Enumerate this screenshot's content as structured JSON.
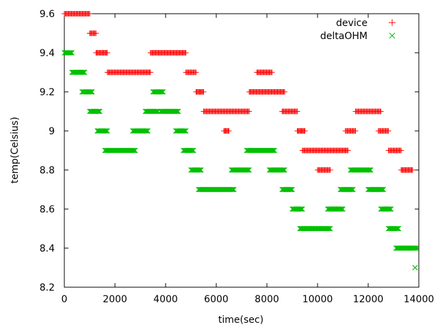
{
  "chart_data": {
    "type": "scatter",
    "title": "",
    "xlabel": "time(sec)",
    "ylabel": "temp(Celsius)",
    "xlim": [
      0,
      14000
    ],
    "ylim": [
      8.2,
      9.6
    ],
    "xticks": [
      0,
      2000,
      4000,
      6000,
      8000,
      10000,
      12000,
      14000
    ],
    "xtick_labels": [
      "0",
      "2000",
      "4000",
      "6000",
      "8000",
      "10000",
      "12000",
      "14000"
    ],
    "yticks": [
      8.2,
      8.4,
      8.6,
      8.8,
      9.0,
      9.2,
      9.4,
      9.6
    ],
    "ytick_labels": [
      "8.2",
      "8.4",
      "8.6",
      "8.8",
      "9",
      "9.2",
      "9.4",
      "9.6"
    ],
    "grid": false,
    "legend_position": "top-right",
    "series": [
      {
        "name": "device",
        "marker": "plus",
        "color": "#ff0000",
        "segments": [
          {
            "x": [
              0,
              1000
            ],
            "y": 9.6
          },
          {
            "x": [
              1000,
              1250
            ],
            "y": 9.5
          },
          {
            "x": [
              1250,
              1700
            ],
            "y": 9.4
          },
          {
            "x": [
              1700,
              3400
            ],
            "y": 9.3
          },
          {
            "x": [
              3400,
              4800
            ],
            "y": 9.4
          },
          {
            "x": [
              4800,
              5200
            ],
            "y": 9.3
          },
          {
            "x": [
              5200,
              5500
            ],
            "y": 9.2
          },
          {
            "x": [
              5500,
              7300
            ],
            "y": 9.1
          },
          {
            "x": [
              6300,
              6500
            ],
            "y": 9.0
          },
          {
            "x": [
              7300,
              8700
            ],
            "y": 9.2
          },
          {
            "x": [
              7600,
              8200
            ],
            "y": 9.3
          },
          {
            "x": [
              8600,
              9200
            ],
            "y": 9.1
          },
          {
            "x": [
              9200,
              9500
            ],
            "y": 9.0
          },
          {
            "x": [
              9400,
              11200
            ],
            "y": 8.9
          },
          {
            "x": [
              10000,
              10500
            ],
            "y": 8.8
          },
          {
            "x": [
              11100,
              11500
            ],
            "y": 9.0
          },
          {
            "x": [
              11500,
              12500
            ],
            "y": 9.1
          },
          {
            "x": [
              12400,
              12800
            ],
            "y": 9.0
          },
          {
            "x": [
              12800,
              13300
            ],
            "y": 8.9
          },
          {
            "x": [
              13300,
              13750
            ],
            "y": 8.8
          }
        ]
      },
      {
        "name": "deltaOHM",
        "marker": "cross",
        "color": "#00c000",
        "segments": [
          {
            "x": [
              0,
              300
            ],
            "y": 9.4
          },
          {
            "x": [
              300,
              800
            ],
            "y": 9.3
          },
          {
            "x": [
              700,
              1100
            ],
            "y": 9.2
          },
          {
            "x": [
              1000,
              1400
            ],
            "y": 9.1
          },
          {
            "x": [
              1300,
              1700
            ],
            "y": 9.0
          },
          {
            "x": [
              1600,
              2800
            ],
            "y": 8.9
          },
          {
            "x": [
              2700,
              3300
            ],
            "y": 9.0
          },
          {
            "x": [
              3200,
              3700
            ],
            "y": 9.1
          },
          {
            "x": [
              3500,
              3900
            ],
            "y": 9.2
          },
          {
            "x": [
              3800,
              4500
            ],
            "y": 9.1
          },
          {
            "x": [
              4400,
              4800
            ],
            "y": 9.0
          },
          {
            "x": [
              4700,
              5100
            ],
            "y": 8.9
          },
          {
            "x": [
              5000,
              5400
            ],
            "y": 8.8
          },
          {
            "x": [
              5300,
              6700
            ],
            "y": 8.7
          },
          {
            "x": [
              6600,
              7300
            ],
            "y": 8.8
          },
          {
            "x": [
              7200,
              8300
            ],
            "y": 8.9
          },
          {
            "x": [
              8100,
              8700
            ],
            "y": 8.8
          },
          {
            "x": [
              8600,
              9000
            ],
            "y": 8.7
          },
          {
            "x": [
              9000,
              9400
            ],
            "y": 8.6
          },
          {
            "x": [
              9300,
              10500
            ],
            "y": 8.5
          },
          {
            "x": [
              10400,
              11000
            ],
            "y": 8.6
          },
          {
            "x": [
              10900,
              11400
            ],
            "y": 8.7
          },
          {
            "x": [
              11300,
              12100
            ],
            "y": 8.8
          },
          {
            "x": [
              12000,
              12600
            ],
            "y": 8.7
          },
          {
            "x": [
              12500,
              12900
            ],
            "y": 8.6
          },
          {
            "x": [
              12800,
              13200
            ],
            "y": 8.5
          },
          {
            "x": [
              13100,
              13900
            ],
            "y": 8.4
          },
          {
            "x": [
              13850,
              13850
            ],
            "y": 8.3
          }
        ]
      }
    ]
  }
}
